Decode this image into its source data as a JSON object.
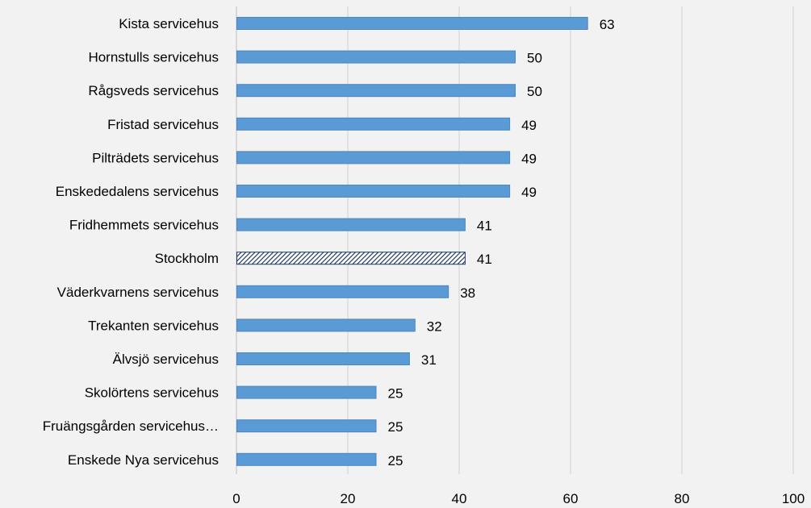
{
  "chart_data": {
    "type": "bar",
    "orientation": "horizontal",
    "title": "",
    "xlabel": "",
    "ylabel": "",
    "xlim": [
      0,
      100
    ],
    "x_ticks": [
      0,
      20,
      40,
      60,
      80,
      100
    ],
    "grid": "vertical",
    "legend": "none",
    "categories": [
      "Kista servicehus",
      "Hornstulls servicehus",
      "Rågsveds servicehus",
      "Fristad servicehus",
      "Pilträdets servicehus",
      "Enskededalens servicehus",
      "Fridhemmets servicehus",
      "Stockholm",
      "Väderkvarnens servicehus",
      "Trekanten servicehus",
      "Älvsjö servicehus",
      "Skolörtens servicehus",
      "Fruängsgården servicehus…",
      "Enskede Nya servicehus"
    ],
    "values": [
      63,
      50,
      50,
      49,
      49,
      49,
      41,
      41,
      38,
      32,
      31,
      25,
      25,
      25
    ],
    "highlight_category": "Stockholm",
    "colors": {
      "bar": "#5b9bd5",
      "bar_border": "#4a86c0",
      "highlight_fill": "#1f3864",
      "grid": "#d0d0d0",
      "axis": "#bfbfbf",
      "background": "#f2f2f2"
    }
  }
}
